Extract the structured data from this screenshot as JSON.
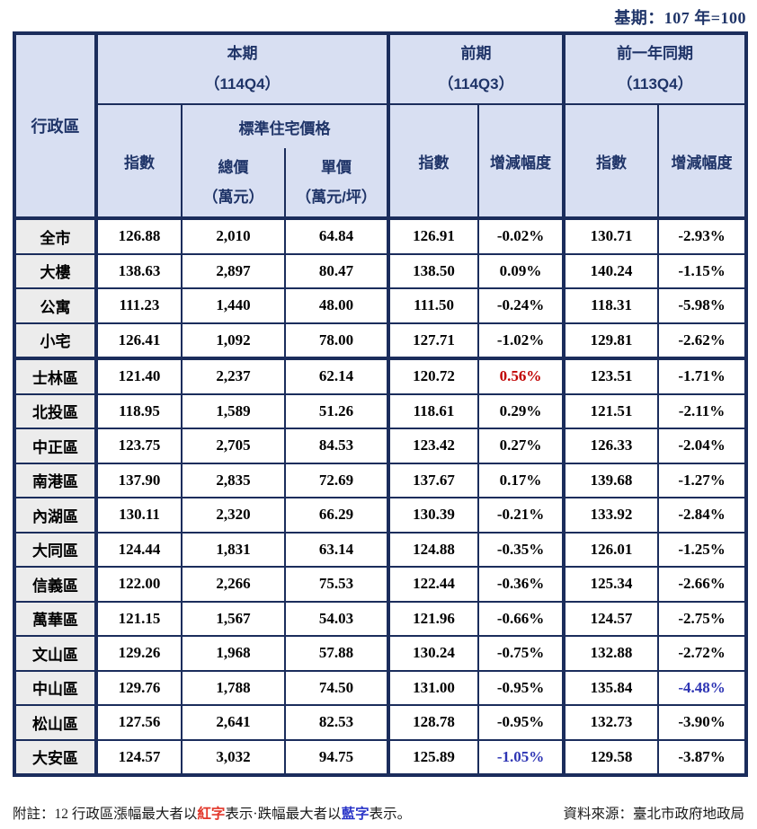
{
  "base_period_label": "基期：107 年=100",
  "colors": {
    "border_navy": "#1b2d5c",
    "header_bg": "#d8dff2",
    "header_text": "#1f3468",
    "region_bg": "#ececec",
    "highlight_red": "#c00000",
    "highlight_blue": "#2e35b4",
    "note_red": "#e2372a",
    "note_blue": "#2a35c8"
  },
  "table": {
    "region_col_header": "行政區",
    "groups": [
      {
        "title": "本期",
        "subtitle": "（114Q4）"
      },
      {
        "title": "前期",
        "subtitle": "（114Q3）"
      },
      {
        "title": "前一年同期",
        "subtitle": "（113Q4）"
      }
    ],
    "sub_headers": {
      "index": "指數",
      "std_price": "標準住宅價格",
      "total_price": "總價",
      "total_price_unit": "（萬元）",
      "unit_price": "單價",
      "unit_price_unit": "（萬元/坪）",
      "change": "增減幅度"
    },
    "rows": [
      {
        "region": "全市",
        "values": [
          "126.88",
          "2,010",
          "64.84",
          "126.91",
          "-0.02%",
          "130.71",
          "-2.93%"
        ]
      },
      {
        "region": "大樓",
        "values": [
          "138.63",
          "2,897",
          "80.47",
          "138.50",
          "0.09%",
          "140.24",
          "-1.15%"
        ]
      },
      {
        "region": "公寓",
        "values": [
          "111.23",
          "1,440",
          "48.00",
          "111.50",
          "-0.24%",
          "118.31",
          "-5.98%"
        ]
      },
      {
        "region": "小宅",
        "values": [
          "126.41",
          "1,092",
          "78.00",
          "127.71",
          "-1.02%",
          "129.81",
          "-2.62%"
        ]
      },
      {
        "region": "士林區",
        "values": [
          "121.40",
          "2,237",
          "62.14",
          "120.72",
          "0.56%",
          "123.51",
          "-1.71%"
        ],
        "value_colors": [
          null,
          null,
          null,
          null,
          "red",
          null,
          null
        ],
        "section_start": true
      },
      {
        "region": "北投區",
        "values": [
          "118.95",
          "1,589",
          "51.26",
          "118.61",
          "0.29%",
          "121.51",
          "-2.11%"
        ]
      },
      {
        "region": "中正區",
        "values": [
          "123.75",
          "2,705",
          "84.53",
          "123.42",
          "0.27%",
          "126.33",
          "-2.04%"
        ]
      },
      {
        "region": "南港區",
        "values": [
          "137.90",
          "2,835",
          "72.69",
          "137.67",
          "0.17%",
          "139.68",
          "-1.27%"
        ]
      },
      {
        "region": "內湖區",
        "values": [
          "130.11",
          "2,320",
          "66.29",
          "130.39",
          "-0.21%",
          "133.92",
          "-2.84%"
        ]
      },
      {
        "region": "大同區",
        "values": [
          "124.44",
          "1,831",
          "63.14",
          "124.88",
          "-0.35%",
          "126.01",
          "-1.25%"
        ]
      },
      {
        "region": "信義區",
        "values": [
          "122.00",
          "2,266",
          "75.53",
          "122.44",
          "-0.36%",
          "125.34",
          "-2.66%"
        ]
      },
      {
        "region": "萬華區",
        "values": [
          "121.15",
          "1,567",
          "54.03",
          "121.96",
          "-0.66%",
          "124.57",
          "-2.75%"
        ]
      },
      {
        "region": "文山區",
        "values": [
          "129.26",
          "1,968",
          "57.88",
          "130.24",
          "-0.75%",
          "132.88",
          "-2.72%"
        ]
      },
      {
        "region": "中山區",
        "values": [
          "129.76",
          "1,788",
          "74.50",
          "131.00",
          "-0.95%",
          "135.84",
          "-4.48%"
        ],
        "value_colors": [
          null,
          null,
          null,
          null,
          null,
          null,
          "blue"
        ]
      },
      {
        "region": "松山區",
        "values": [
          "127.56",
          "2,641",
          "82.53",
          "128.78",
          "-0.95%",
          "132.73",
          "-3.90%"
        ]
      },
      {
        "region": "大安區",
        "values": [
          "124.57",
          "3,032",
          "94.75",
          "125.89",
          "-1.05%",
          "129.58",
          "-3.87%"
        ],
        "value_colors": [
          null,
          null,
          null,
          null,
          "blue",
          null,
          null
        ]
      }
    ]
  },
  "footnote": {
    "segments": [
      {
        "text": "附註：12 行政區漲幅最大者以"
      },
      {
        "text": "紅字",
        "color": "note_red"
      },
      {
        "text": "表示·跌幅最大者以"
      },
      {
        "text": "藍字",
        "color": "note_blue"
      },
      {
        "text": "表示。"
      }
    ],
    "source": "資料來源：臺北市政府地政局"
  }
}
